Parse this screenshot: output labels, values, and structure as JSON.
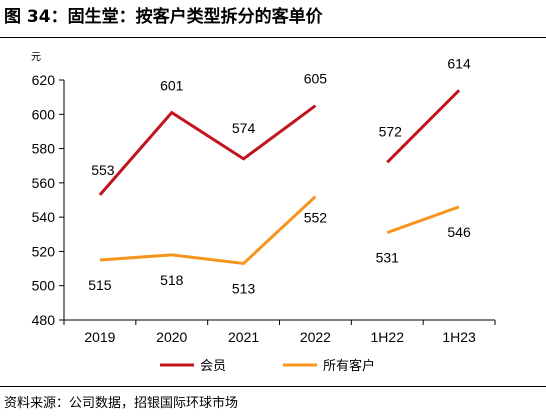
{
  "header": {
    "title": "图 34：固生堂：按客户类型拆分的客单价"
  },
  "footer": {
    "source": "资料来源：公司数据，招银国际环球市场"
  },
  "colors": {
    "member": "#C0141E",
    "all": "#F7941D",
    "axis": "#000000"
  },
  "chart_data": {
    "type": "line",
    "title": "",
    "xlabel": "",
    "ylabel": "元",
    "categories": [
      "2019",
      "2020",
      "2021",
      "2022",
      "1H22",
      "1H23"
    ],
    "yticks": [
      480,
      500,
      520,
      540,
      560,
      580,
      600,
      620
    ],
    "ylim": [
      480,
      620
    ],
    "grid": false,
    "legend_position": "bottom",
    "segments": [
      [
        0,
        3
      ],
      [
        4,
        5
      ]
    ],
    "series": [
      {
        "name": "会员",
        "values": [
          553,
          601,
          574,
          605,
          572,
          614
        ]
      },
      {
        "name": "所有客户",
        "values": [
          515,
          518,
          513,
          552,
          531,
          546
        ]
      }
    ]
  }
}
